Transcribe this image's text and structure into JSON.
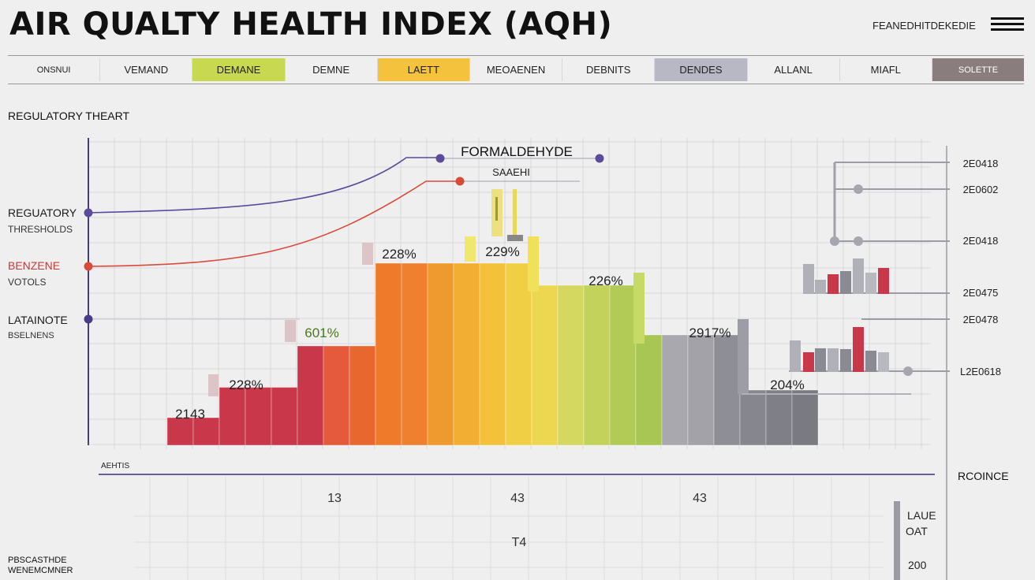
{
  "header": {
    "title": "AIR QUALTY HEALTH INDEX (AQH)",
    "link_label": "FEANEDHITDEKEDIE",
    "menu_icon": "hamburger-menu-icon"
  },
  "tabs": [
    {
      "label": "ONSNUI",
      "color": ""
    },
    {
      "label": "VEMAND",
      "color": ""
    },
    {
      "label": "DEMANE",
      "color": "#c8d850"
    },
    {
      "label": "DEMNE",
      "color": ""
    },
    {
      "label": "LAETT",
      "color": "#f5c23e"
    },
    {
      "label": "MEOAENEN",
      "color": ""
    },
    {
      "label": "DEBNITS",
      "color": ""
    },
    {
      "label": "DENDES",
      "color": "#b8b8c4"
    },
    {
      "label": "ALLANL",
      "color": ""
    },
    {
      "label": "MIAFL",
      "color": ""
    },
    {
      "label": "SOLETTE",
      "color": "#8a7d7d"
    }
  ],
  "section_title": "REGULATORY THEART",
  "left_labels": [
    {
      "title": "REGUATORY",
      "sub": "THRESHOLDS"
    },
    {
      "title": "BENZENE",
      "sub": "VOTOLS",
      "color": "#c8383a"
    },
    {
      "title": "LATAINOTE",
      "sub": "BSELNENS"
    }
  ],
  "chart_data": {
    "type": "bar",
    "title": "FORMALDEHYDE",
    "subtitle": "SAAEHI",
    "bars": [
      {
        "value": 1.0,
        "color": "#c9374a"
      },
      {
        "value": 1.0,
        "color": "#c9374a"
      },
      {
        "value": 2.1,
        "color": "#c9374a"
      },
      {
        "value": 2.1,
        "color": "#c9374a"
      },
      {
        "value": 2.1,
        "color": "#c9374a"
      },
      {
        "value": 3.6,
        "color": "#c9374a"
      },
      {
        "value": 3.6,
        "color": "#e55a3a"
      },
      {
        "value": 3.6,
        "color": "#e8672f"
      },
      {
        "value": 6.6,
        "color": "#ee7a2a"
      },
      {
        "value": 6.6,
        "color": "#ee8030"
      },
      {
        "value": 6.6,
        "color": "#ef9a2e"
      },
      {
        "value": 6.6,
        "color": "#f2ae33"
      },
      {
        "value": 6.6,
        "color": "#f3c23a"
      },
      {
        "value": 6.6,
        "color": "#f0cf45"
      },
      {
        "value": 5.8,
        "color": "#eed750"
      },
      {
        "value": 5.8,
        "color": "#d5d860"
      },
      {
        "value": 5.8,
        "color": "#c2d25a"
      },
      {
        "value": 5.8,
        "color": "#b2cb56"
      },
      {
        "value": 4.0,
        "color": "#a7c653"
      },
      {
        "value": 4.0,
        "color": "#a8a8ae"
      },
      {
        "value": 4.0,
        "color": "#a2a2a8"
      },
      {
        "value": 4.0,
        "color": "#8e8e96"
      },
      {
        "value": 2.0,
        "color": "#86868e"
      },
      {
        "value": 2.0,
        "color": "#7f7f88"
      },
      {
        "value": 2.0,
        "color": "#7a7a82"
      }
    ],
    "data_labels": [
      "2143",
      "228%",
      "228%",
      "229%",
      "226%",
      "601%",
      "2917%",
      "204%"
    ],
    "right_axis_ticks": [
      "2E0418",
      "2E0602",
      "2E0418",
      "2E0475",
      "2E0478",
      "L2E0618"
    ],
    "right_label": "RCOINCE",
    "bottom_axis_label": "AEHTIS",
    "bottom_values": [
      "13",
      "43",
      "43",
      "T4"
    ],
    "legend": [
      "LAUE",
      "OAT",
      "200"
    ],
    "footnote": [
      "PBSCASTHDE",
      "WENEMCMNER"
    ],
    "series_colors": {
      "regulatory": "#5b4b9a",
      "benzene": "#d84a3a",
      "latainote": "#4a3b8a"
    }
  }
}
